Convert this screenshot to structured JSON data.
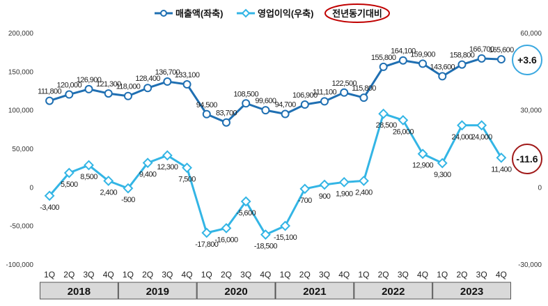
{
  "chart_data": {
    "type": "line",
    "title": "",
    "legend": {
      "sales": "매출액(좌축)",
      "profit": "영업이익(우축)",
      "yoy": "전년동기대비"
    },
    "categories": [
      "1Q",
      "2Q",
      "3Q",
      "4Q",
      "1Q",
      "2Q",
      "3Q",
      "4Q",
      "1Q",
      "2Q",
      "3Q",
      "4Q",
      "1Q",
      "2Q",
      "3Q",
      "4Q",
      "1Q",
      "2Q",
      "3Q",
      "4Q",
      "1Q",
      "2Q",
      "3Q",
      "4Q"
    ],
    "years": [
      "2018",
      "2019",
      "2020",
      "2021",
      "2022",
      "2023"
    ],
    "series": [
      {
        "name": "매출액(좌축)",
        "axis": "left",
        "color": "#1f6fb2",
        "values": [
          111800,
          120000,
          126900,
          121300,
          118000,
          128400,
          136700,
          133100,
          94500,
          83700,
          108500,
          99600,
          94700,
          106900,
          111100,
          122500,
          115800,
          155800,
          164100,
          159900,
          143600,
          158800,
          166700,
          165600
        ],
        "labels": [
          "111,800",
          "120,000",
          "126,900",
          "121,300",
          "118,000",
          "128,400",
          "136,700",
          "133,100",
          "94,500",
          "83,700",
          "108,500",
          "99,600",
          "94,700",
          "106,900",
          "111,100",
          "122,500",
          "115,800",
          "155,800",
          "164,100",
          "159,900",
          "143,600",
          "158,800",
          "166,700",
          "165,600"
        ]
      },
      {
        "name": "영업이익(우축)",
        "axis": "right",
        "color": "#33b5e5",
        "values": [
          -3400,
          5500,
          8500,
          2400,
          -500,
          9400,
          12300,
          7500,
          -17800,
          -16000,
          -5600,
          -18500,
          -15100,
          -700,
          900,
          1900,
          2400,
          28500,
          26000,
          12900,
          9300,
          24000,
          24000,
          11400
        ],
        "labels": [
          "-3,400",
          "5,500",
          "8,500",
          "2,400",
          "-500",
          "9,400",
          "12,300",
          "7,500",
          "-17,800",
          "-16,000",
          "-5,600",
          "-18,500",
          "-15,100",
          "-700",
          "900",
          "1,900",
          "2,400",
          "28,500",
          "26,000",
          "12,900",
          "9,300",
          "24,000",
          "24,000",
          "11,400"
        ]
      }
    ],
    "y_left": {
      "min": -100000,
      "max": 200000,
      "ticks": [
        200000,
        150000,
        100000,
        50000,
        0,
        -50000,
        -100000
      ],
      "tick_labels": [
        "200,000",
        "150,000",
        "100,000",
        "50,000",
        "0",
        "-50,000",
        "-100,000"
      ]
    },
    "y_right": {
      "min": -30000,
      "max": 60000,
      "ticks": [
        60000,
        30000,
        0,
        -30000
      ],
      "tick_labels": [
        "60,000",
        "30,000",
        "0",
        "-30,000"
      ]
    },
    "annotations": {
      "sales_yoy": {
        "text": "+3.6",
        "color": "#3aa8e0"
      },
      "profit_yoy": {
        "text": "-11.6",
        "color": "#a01818"
      }
    }
  }
}
